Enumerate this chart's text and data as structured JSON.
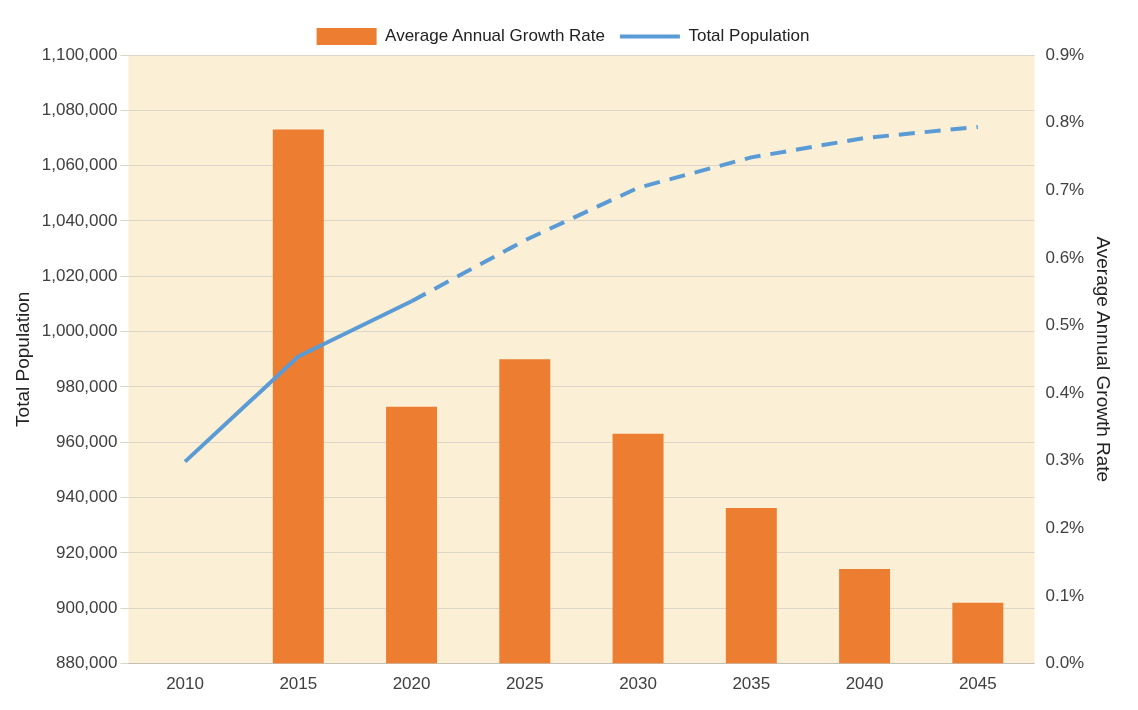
{
  "chart_data": {
    "type": "bar",
    "xlabel": null,
    "ylabel": "Total Population",
    "y2label": "Average Annual Growth Rate",
    "categories": [
      "2010",
      "2015",
      "2020",
      "2025",
      "2030",
      "2035",
      "2040",
      "2045"
    ],
    "series": [
      {
        "name": "Average Annual Growth Rate",
        "type": "bar",
        "axis": "y2",
        "color": "#ed7d31",
        "values": [
          null,
          0.79,
          0.38,
          0.45,
          0.34,
          0.23,
          0.14,
          0.09
        ]
      },
      {
        "type": "line",
        "axis": "y",
        "color": "#5b9bd5",
        "line_style": "solid",
        "values": [
          953000,
          991000,
          1011000,
          null,
          null,
          null,
          null,
          null
        ]
      },
      {
        "name": "Total Population",
        "type": "line",
        "axis": "y",
        "color": "#5b9bd5",
        "line_style": "dashed",
        "values": [
          null,
          null,
          1011000,
          1033000,
          1052000,
          1063000,
          1070000,
          1074000
        ]
      }
    ],
    "ylim": [
      880000,
      1100000
    ],
    "yticks": [
      {
        "value": 880000,
        "label": "880,000"
      },
      {
        "value": 900000,
        "label": "900,000"
      },
      {
        "value": 920000,
        "label": "920,000"
      },
      {
        "value": 940000,
        "label": "940,000"
      },
      {
        "value": 960000,
        "label": "960,000"
      },
      {
        "value": 980000,
        "label": "980,000"
      },
      {
        "value": 1000000,
        "label": "1,000,000"
      },
      {
        "value": 1020000,
        "label": "1,020,000"
      },
      {
        "value": 1040000,
        "label": "1,040,000"
      },
      {
        "value": 1060000,
        "label": "1,060,000"
      },
      {
        "value": 1080000,
        "label": "1,080,000"
      },
      {
        "value": 1100000,
        "label": "1,100,000"
      }
    ],
    "y2lim": [
      0,
      0.9
    ],
    "y2ticks": [
      {
        "value": 0,
        "label": "0.0%"
      },
      {
        "value": 0.1,
        "label": "0.1%"
      },
      {
        "value": 0.2,
        "label": "0.2%"
      },
      {
        "value": 0.3,
        "label": "0.3%"
      },
      {
        "value": 0.4,
        "label": "0.4%"
      },
      {
        "value": 0.5,
        "label": "0.5%"
      },
      {
        "value": 0.6,
        "label": "0.6%"
      },
      {
        "value": 0.7,
        "label": "0.7%"
      },
      {
        "value": 0.8,
        "label": "0.8%"
      },
      {
        "value": 0.9,
        "label": "0.9%"
      }
    ],
    "grid": "y",
    "legend": "top",
    "marker": "none"
  }
}
